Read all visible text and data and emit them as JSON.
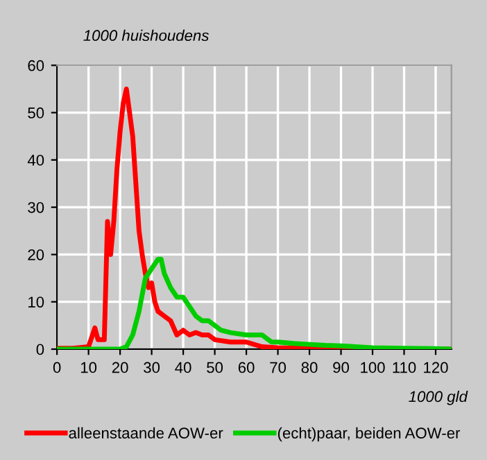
{
  "chart_data": {
    "type": "line",
    "ylabel": "1000 huishoudens",
    "xlabel": "1000 gld",
    "xlim": [
      0,
      125
    ],
    "ylim": [
      0,
      60
    ],
    "xticks": [
      0,
      10,
      20,
      30,
      40,
      50,
      60,
      70,
      80,
      90,
      100,
      110,
      120
    ],
    "yticks": [
      0,
      10,
      20,
      30,
      40,
      50,
      60
    ],
    "grid": true,
    "legend": "bottom",
    "marker": "none",
    "line_style": "solid",
    "series": [
      {
        "name": "alleenstaande AOW-er",
        "color": "#ff0000",
        "x": [
          0,
          5,
          10,
          12,
          13,
          15,
          16,
          17,
          18,
          19,
          20,
          21,
          22,
          23,
          24,
          25,
          26,
          27,
          28,
          29,
          30,
          31,
          32,
          34,
          36,
          38,
          40,
          42,
          44,
          46,
          48,
          50,
          55,
          60,
          65,
          70,
          80,
          90,
          100,
          125
        ],
        "values": [
          0.2,
          0.2,
          0.5,
          4.5,
          2,
          2,
          27,
          20,
          27,
          38,
          46,
          52,
          55,
          50,
          45,
          35,
          25,
          20,
          16,
          13,
          14,
          10,
          8,
          7,
          6,
          3,
          4,
          3,
          3.5,
          3,
          3,
          2,
          1.5,
          1.5,
          0.5,
          0.3,
          0.2,
          0.1,
          0,
          0
        ]
      },
      {
        "name": "(echt)paar, beiden AOW-er",
        "color": "#00cc00",
        "x": [
          0,
          20,
          22,
          24,
          26,
          28,
          30,
          32,
          33,
          34,
          36,
          38,
          40,
          42,
          44,
          46,
          48,
          50,
          52,
          55,
          60,
          65,
          66,
          68,
          70,
          75,
          80,
          85,
          90,
          100,
          110,
          120,
          125
        ],
        "values": [
          0,
          0,
          0.5,
          3,
          8,
          15,
          17,
          19,
          19,
          16,
          13,
          11,
          11,
          9,
          7,
          6,
          6,
          5,
          4,
          3.5,
          3,
          3,
          2.5,
          1.5,
          1.5,
          1.2,
          1,
          0.8,
          0.7,
          0.3,
          0.2,
          0.1,
          0
        ]
      }
    ]
  }
}
